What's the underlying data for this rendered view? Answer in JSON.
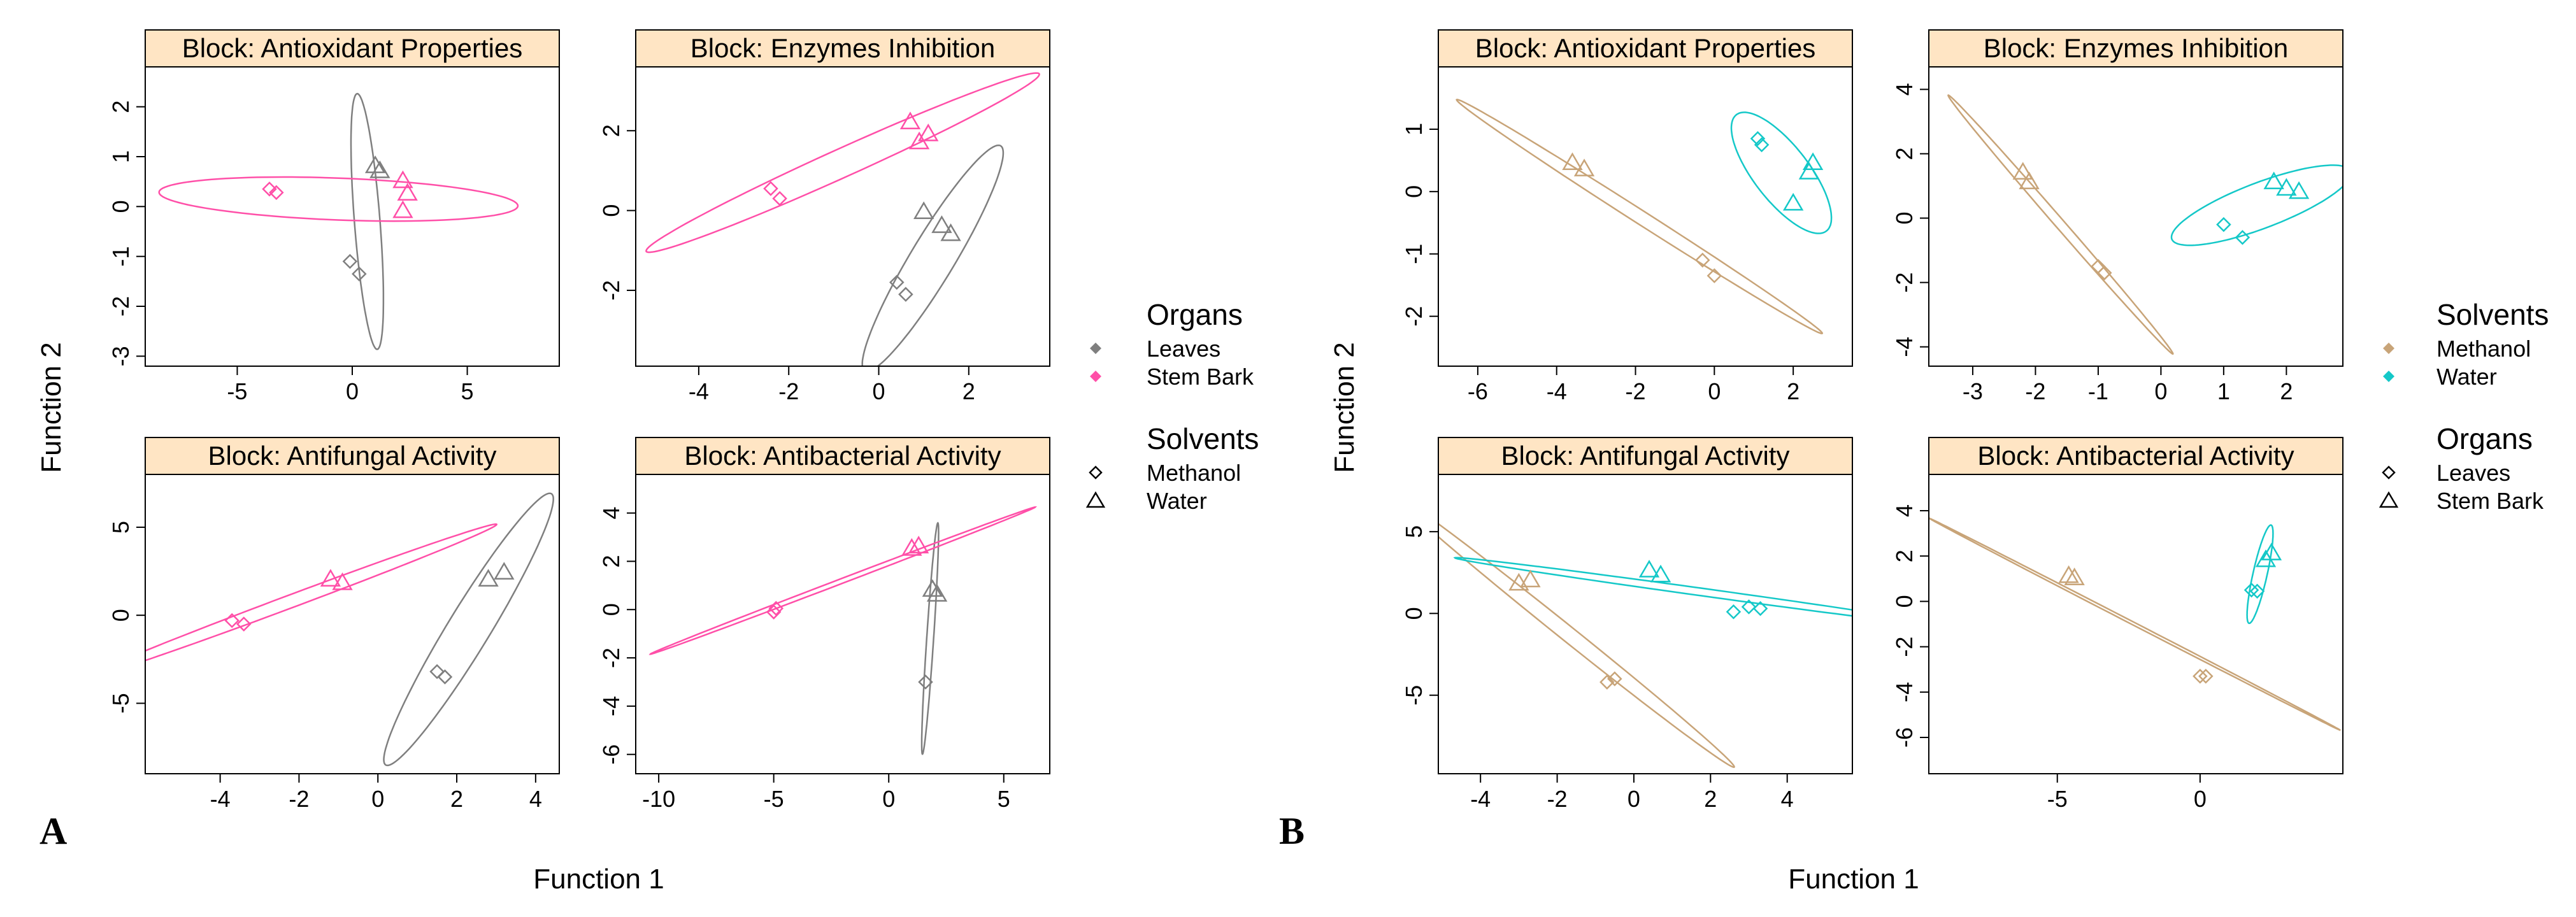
{
  "figure": {
    "panel_a_label": "A",
    "panel_b_label": "B",
    "xlabel": "Function 1",
    "ylabel": "Function 2"
  },
  "legends": {
    "A": {
      "color_title": "Organs",
      "color_entries": [
        {
          "label": "Leaves",
          "color": "#7f7f7f"
        },
        {
          "label": "Stem Bark",
          "color": "#ff4fa8"
        }
      ],
      "shape_title": "Solvents",
      "shape_entries": [
        {
          "label": "Methanol",
          "shape": "circle"
        },
        {
          "label": "Water",
          "shape": "triangle"
        }
      ]
    },
    "B": {
      "color_title": "Solvents",
      "color_entries": [
        {
          "label": "Methanol",
          "color": "#c8a478"
        },
        {
          "label": "Water",
          "color": "#14c8c8"
        }
      ],
      "shape_title": "Organs",
      "shape_entries": [
        {
          "label": "Leaves",
          "shape": "circle"
        },
        {
          "label": "Stem Bark",
          "shape": "triangle"
        }
      ]
    }
  },
  "chart_data": [
    {
      "type": "scatter",
      "panel": "A",
      "title": "Block: Antioxidant Properties",
      "xlim": [
        -9,
        9
      ],
      "ylim": [
        -3.2,
        2.8
      ],
      "xticks": [
        -5,
        0,
        5
      ],
      "yticks": [
        -3,
        -2,
        -1,
        0,
        1,
        2
      ],
      "series": [
        {
          "name": "Leaves Methanol",
          "color": "#7f7f7f",
          "shape": "circle",
          "x": [
            -0.1,
            0.3
          ],
          "y": [
            -1.1,
            -1.35
          ]
        },
        {
          "name": "Leaves Water",
          "color": "#7f7f7f",
          "shape": "triangle",
          "x": [
            1.0,
            1.2
          ],
          "y": [
            0.8,
            0.7
          ]
        },
        {
          "name": "Stem Bark Methanol",
          "color": "#ff4fa8",
          "shape": "circle",
          "x": [
            -3.6,
            -3.3
          ],
          "y": [
            0.35,
            0.28
          ]
        },
        {
          "name": "Stem Bark Water",
          "color": "#ff4fa8",
          "shape": "triangle",
          "x": [
            2.2,
            2.4,
            2.2
          ],
          "y": [
            0.5,
            0.25,
            -0.1
          ]
        }
      ],
      "ellipses": [
        {
          "group": "Leaves",
          "color": "#7f7f7f",
          "cx": 0.65,
          "cy": -0.3,
          "rx": 0.55,
          "ry": 2.6,
          "angle_deg": 10
        },
        {
          "group": "Stem Bark",
          "color": "#ff4fa8",
          "cx": -0.6,
          "cy": 0.15,
          "rx": 7.8,
          "ry": 0.42,
          "angle_deg": -1
        }
      ]
    },
    {
      "type": "scatter",
      "panel": "A",
      "title": "Block: Enzymes Inhibition",
      "xlim": [
        -5.4,
        3.8
      ],
      "ylim": [
        -3.9,
        3.6
      ],
      "xticks": [
        -4,
        -2,
        0,
        2
      ],
      "yticks": [
        -2,
        0,
        2
      ],
      "series": [
        {
          "name": "Leaves Methanol",
          "color": "#7f7f7f",
          "shape": "circle",
          "x": [
            0.4,
            0.6
          ],
          "y": [
            -1.8,
            -2.1
          ]
        },
        {
          "name": "Leaves Water",
          "color": "#7f7f7f",
          "shape": "triangle",
          "x": [
            1.0,
            1.4,
            1.6
          ],
          "y": [
            -0.05,
            -0.4,
            -0.6
          ]
        },
        {
          "name": "Stem Bark Methanol",
          "color": "#ff4fa8",
          "shape": "circle",
          "x": [
            -2.4,
            -2.2
          ],
          "y": [
            0.55,
            0.3
          ]
        },
        {
          "name": "Stem Bark Water",
          "color": "#ff4fa8",
          "shape": "triangle",
          "x": [
            0.7,
            0.9,
            1.1
          ],
          "y": [
            2.2,
            1.7,
            1.9
          ]
        }
      ],
      "ellipses": [
        {
          "group": "Leaves",
          "color": "#7f7f7f",
          "cx": 1.2,
          "cy": -1.2,
          "rx": 3.2,
          "ry": 0.5,
          "angle_deg": 62
        },
        {
          "group": "Stem Bark",
          "color": "#ff4fa8",
          "cx": -0.8,
          "cy": 1.2,
          "rx": 4.9,
          "ry": 0.35,
          "angle_deg": 27
        }
      ]
    },
    {
      "type": "scatter",
      "panel": "A",
      "title": "Block: Antifungal Activity",
      "xlim": [
        -5.9,
        4.6
      ],
      "ylim": [
        -9,
        8
      ],
      "xticks": [
        -4,
        -2,
        0,
        2,
        4
      ],
      "yticks": [
        -5,
        0,
        5
      ],
      "series": [
        {
          "name": "Leaves Methanol",
          "color": "#7f7f7f",
          "shape": "circle",
          "x": [
            1.5,
            1.7
          ],
          "y": [
            -3.2,
            -3.5
          ]
        },
        {
          "name": "Leaves Water",
          "color": "#7f7f7f",
          "shape": "triangle",
          "x": [
            2.8,
            3.2
          ],
          "y": [
            2.0,
            2.4
          ]
        },
        {
          "name": "Stem Bark Methanol",
          "color": "#ff4fa8",
          "shape": "circle",
          "x": [
            -3.7,
            -3.4
          ],
          "y": [
            -0.3,
            -0.5
          ]
        },
        {
          "name": "Stem Bark Water",
          "color": "#ff4fa8",
          "shape": "triangle",
          "x": [
            -1.2,
            -0.9
          ],
          "y": [
            2.0,
            1.8
          ]
        }
      ],
      "ellipses": [
        {
          "group": "Leaves",
          "color": "#7f7f7f",
          "cx": 2.3,
          "cy": -0.8,
          "rx": 8.0,
          "ry": 0.6,
          "angle_deg": 75
        },
        {
          "group": "Stem Bark",
          "color": "#ff4fa8",
          "cx": -2.2,
          "cy": 0.8,
          "rx": 6.8,
          "ry": 0.3,
          "angle_deg": 40
        }
      ]
    },
    {
      "type": "scatter",
      "panel": "A",
      "title": "Block: Antibacterial Activity",
      "xlim": [
        -11,
        7
      ],
      "ylim": [
        -6.8,
        5.6
      ],
      "xticks": [
        -10,
        -5,
        0,
        5
      ],
      "yticks": [
        -6,
        -4,
        -2,
        0,
        2,
        4
      ],
      "series": [
        {
          "name": "Leaves Methanol",
          "color": "#7f7f7f",
          "shape": "circle",
          "x": [
            1.6
          ],
          "y": [
            -3.0
          ]
        },
        {
          "name": "Leaves Water",
          "color": "#7f7f7f",
          "shape": "triangle",
          "x": [
            1.9,
            2.1
          ],
          "y": [
            0.8,
            0.6
          ]
        },
        {
          "name": "Stem Bark Methanol",
          "color": "#ff4fa8",
          "shape": "circle",
          "x": [
            -5.0,
            -4.9
          ],
          "y": [
            -0.1,
            0.05
          ]
        },
        {
          "name": "Stem Bark Water",
          "color": "#ff4fa8",
          "shape": "triangle",
          "x": [
            1.0,
            1.3
          ],
          "y": [
            2.5,
            2.6
          ]
        }
      ],
      "ellipses": [
        {
          "group": "Leaves",
          "color": "#7f7f7f",
          "cx": 1.8,
          "cy": -1.2,
          "rx": 4.8,
          "ry": 0.15,
          "angle_deg": 86
        },
        {
          "group": "Stem Bark",
          "color": "#ff4fa8",
          "cx": -2.0,
          "cy": 1.2,
          "rx": 8.9,
          "ry": 0.1,
          "angle_deg": 20
        }
      ]
    },
    {
      "type": "scatter",
      "panel": "B",
      "title": "Block: Antioxidant Properties",
      "xlim": [
        -7,
        3.5
      ],
      "ylim": [
        -2.8,
        2.0
      ],
      "xticks": [
        -6,
        -4,
        -2,
        0,
        2
      ],
      "yticks": [
        -2,
        -1,
        0,
        1
      ],
      "series": [
        {
          "name": "Methanol Leaves",
          "color": "#c8a478",
          "shape": "circle",
          "x": [
            -0.3,
            0.0
          ],
          "y": [
            -1.1,
            -1.35
          ]
        },
        {
          "name": "Methanol Stem Bark",
          "color": "#c8a478",
          "shape": "triangle",
          "x": [
            -3.6,
            -3.3
          ],
          "y": [
            0.45,
            0.35
          ]
        },
        {
          "name": "Water Leaves",
          "color": "#14c8c8",
          "shape": "circle",
          "x": [
            1.1,
            1.2
          ],
          "y": [
            0.85,
            0.75
          ]
        },
        {
          "name": "Water Stem Bark",
          "color": "#14c8c8",
          "shape": "triangle",
          "x": [
            2.0,
            2.4,
            2.5
          ],
          "y": [
            -0.2,
            0.3,
            0.45
          ]
        }
      ],
      "ellipses": [
        {
          "group": "Methanol",
          "color": "#c8a478",
          "cx": -1.9,
          "cy": -0.4,
          "rx": 5.0,
          "ry": 0.12,
          "angle_deg": -22
        },
        {
          "group": "Water",
          "color": "#14c8c8",
          "cx": 1.7,
          "cy": 0.3,
          "rx": 1.5,
          "ry": 0.55,
          "angle_deg": -35
        }
      ]
    },
    {
      "type": "scatter",
      "panel": "B",
      "title": "Block: Enzymes Inhibition",
      "xlim": [
        -3.7,
        2.9
      ],
      "ylim": [
        -4.6,
        4.7
      ],
      "xticks": [
        -3,
        -2,
        -1,
        0,
        1,
        2
      ],
      "yticks": [
        -4,
        -2,
        0,
        2,
        4
      ],
      "series": [
        {
          "name": "Methanol Leaves",
          "color": "#c8a478",
          "shape": "circle",
          "x": [
            -1.0,
            -0.9
          ],
          "y": [
            -1.5,
            -1.7
          ]
        },
        {
          "name": "Methanol Stem Bark",
          "color": "#c8a478",
          "shape": "triangle",
          "x": [
            -2.2,
            -2.1
          ],
          "y": [
            1.4,
            1.1
          ]
        },
        {
          "name": "Water Leaves",
          "color": "#14c8c8",
          "shape": "circle",
          "x": [
            1.0,
            1.3
          ],
          "y": [
            -0.2,
            -0.6
          ]
        },
        {
          "name": "Water Stem Bark",
          "color": "#14c8c8",
          "shape": "triangle",
          "x": [
            1.8,
            2.0,
            2.2
          ],
          "y": [
            1.1,
            0.9,
            0.8
          ]
        }
      ],
      "ellipses": [
        {
          "group": "Methanol",
          "color": "#c8a478",
          "cx": -1.6,
          "cy": -0.2,
          "rx": 4.4,
          "ry": 0.09,
          "angle_deg": -66
        },
        {
          "group": "Water",
          "color": "#14c8c8",
          "cx": 1.6,
          "cy": 0.4,
          "rx": 1.8,
          "ry": 0.6,
          "angle_deg": 40
        }
      ]
    },
    {
      "type": "scatter",
      "panel": "B",
      "title": "Block: Antifungal Activity",
      "xlim": [
        -5.1,
        5.7
      ],
      "ylim": [
        -9.8,
        8.5
      ],
      "xticks": [
        -4,
        -2,
        0,
        2,
        4
      ],
      "yticks": [
        -5,
        0,
        5
      ],
      "series": [
        {
          "name": "Methanol Leaves",
          "color": "#c8a478",
          "shape": "circle",
          "x": [
            -0.7,
            -0.5
          ],
          "y": [
            -4.2,
            -4.0
          ]
        },
        {
          "name": "Methanol Stem Bark",
          "color": "#c8a478",
          "shape": "triangle",
          "x": [
            -3.0,
            -2.7
          ],
          "y": [
            1.8,
            2.0
          ]
        },
        {
          "name": "Water Leaves",
          "color": "#14c8c8",
          "shape": "circle",
          "x": [
            2.6,
            3.0,
            3.3
          ],
          "y": [
            0.1,
            0.4,
            0.3
          ]
        },
        {
          "name": "Water Stem Bark",
          "color": "#14c8c8",
          "shape": "triangle",
          "x": [
            0.4,
            0.7
          ],
          "y": [
            2.6,
            2.3
          ]
        }
      ],
      "ellipses": [
        {
          "group": "Methanol",
          "color": "#c8a478",
          "cx": -1.8,
          "cy": -1.1,
          "rx": 9.4,
          "ry": 0.28,
          "angle_deg": -62
        },
        {
          "group": "Water",
          "color": "#14c8c8",
          "cx": 1.8,
          "cy": 1.3,
          "rx": 6.8,
          "ry": 0.22,
          "angle_deg": -18
        }
      ]
    },
    {
      "type": "scatter",
      "panel": "B",
      "title": "Block: Antibacterial Activity",
      "xlim": [
        -9.5,
        5.0
      ],
      "ylim": [
        -7.6,
        5.6
      ],
      "xticks": [
        -5,
        0
      ],
      "yticks": [
        -6,
        -4,
        -2,
        0,
        2,
        4
      ],
      "series": [
        {
          "name": "Methanol Leaves",
          "color": "#c8a478",
          "shape": "circle",
          "x": [
            0.0,
            0.2
          ],
          "y": [
            -3.3,
            -3.3
          ]
        },
        {
          "name": "Methanol Stem Bark",
          "color": "#c8a478",
          "shape": "triangle",
          "x": [
            -4.6,
            -4.4
          ],
          "y": [
            1.1,
            1.0
          ]
        },
        {
          "name": "Water Leaves",
          "color": "#14c8c8",
          "shape": "circle",
          "x": [
            1.8,
            2.0
          ],
          "y": [
            0.5,
            0.45
          ]
        },
        {
          "name": "Water Stem Bark",
          "color": "#14c8c8",
          "shape": "triangle",
          "x": [
            2.3,
            2.5
          ],
          "y": [
            1.8,
            2.1
          ]
        }
      ],
      "ellipses": [
        {
          "group": "Methanol",
          "color": "#c8a478",
          "cx": -2.3,
          "cy": -1.0,
          "rx": 8.6,
          "ry": 0.06,
          "angle_deg": -33
        },
        {
          "group": "Water",
          "color": "#14c8c8",
          "cx": 2.1,
          "cy": 1.2,
          "rx": 2.2,
          "ry": 0.25,
          "angle_deg": 80
        }
      ]
    }
  ]
}
